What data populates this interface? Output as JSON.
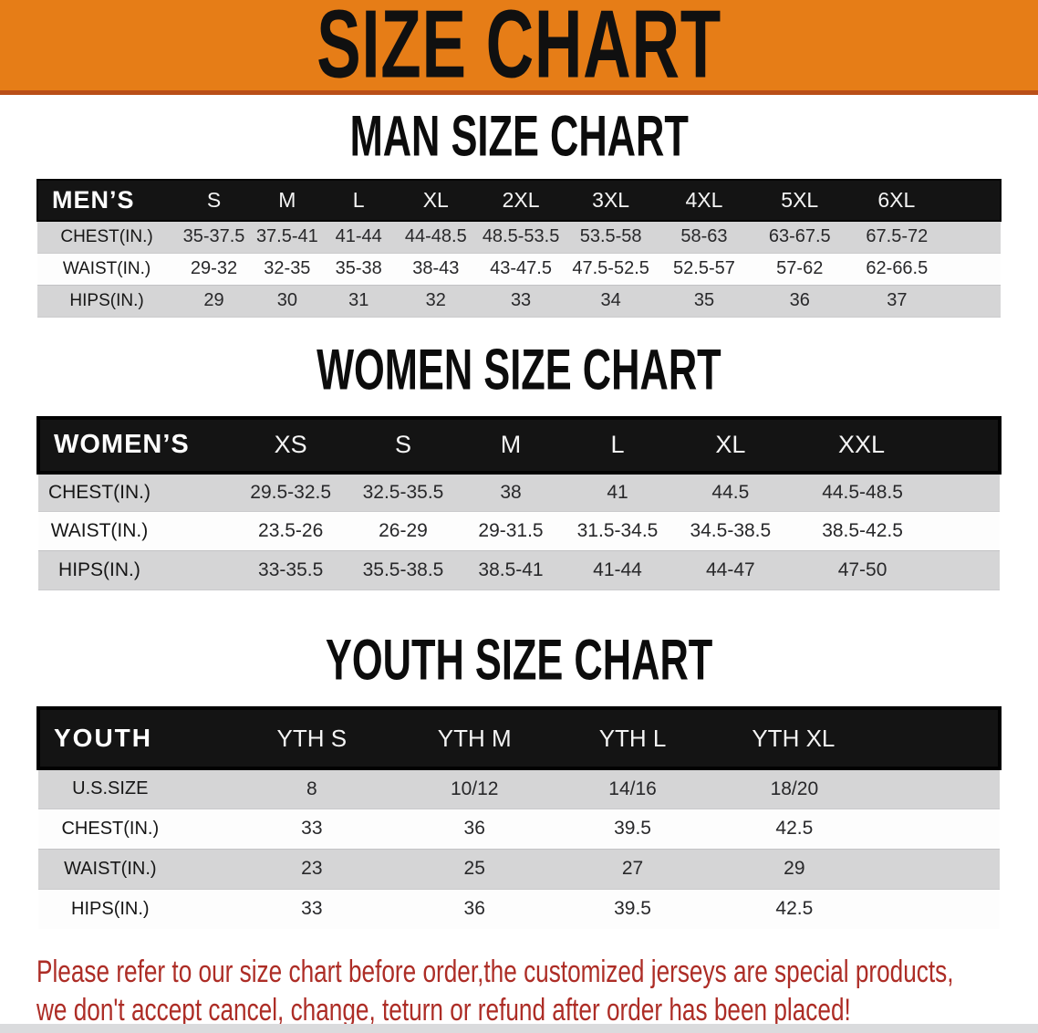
{
  "banner": {
    "title": "SIZE CHART",
    "bg_color": "#E67D17",
    "edge_color": "#BA4F18"
  },
  "sections": [
    {
      "id": "men",
      "title": "MAN SIZE CHART",
      "header_label": "MEN’S",
      "columns": [
        "S",
        "M",
        "L",
        "XL",
        "2XL",
        "3XL",
        "4XL",
        "5XL",
        "6XL"
      ],
      "rows": [
        {
          "label": "CHEST(IN.)",
          "values": [
            "35-37.5",
            "37.5-41",
            "41-44",
            "44-48.5",
            "48.5-53.5",
            "53.5-58",
            "58-63",
            "63-67.5",
            "67.5-72"
          ]
        },
        {
          "label": "WAIST(IN.)",
          "values": [
            "29-32",
            "32-35",
            "35-38",
            "38-43",
            "43-47.5",
            "47.5-52.5",
            "52.5-57",
            "57-62",
            "62-66.5"
          ]
        },
        {
          "label": "HIPS(IN.)",
          "values": [
            "29",
            "30",
            "31",
            "32",
            "33",
            "34",
            "35",
            "36",
            "37"
          ]
        }
      ]
    },
    {
      "id": "women",
      "title": "WOMEN SIZE CHART",
      "header_label": "WOMEN’S",
      "columns": [
        "XS",
        "S",
        "M",
        "L",
        "XL",
        "XXL"
      ],
      "rows": [
        {
          "label": "CHEST(IN.)",
          "values": [
            "29.5-32.5",
            "32.5-35.5",
            "38",
            "41",
            "44.5",
            "44.5-48.5"
          ]
        },
        {
          "label": "WAIST(IN.)",
          "values": [
            "23.5-26",
            "26-29",
            "29-31.5",
            "31.5-34.5",
            "34.5-38.5",
            "38.5-42.5"
          ]
        },
        {
          "label": "HIPS(IN.)",
          "values": [
            "33-35.5",
            "35.5-38.5",
            "38.5-41",
            "41-44",
            "44-47",
            "47-50"
          ]
        }
      ]
    },
    {
      "id": "youth",
      "title": "YOUTH SIZE CHART",
      "header_label": "YOUTH",
      "columns": [
        "YTH S",
        "YTH M",
        "YTH L",
        "YTH XL"
      ],
      "rows": [
        {
          "label": "U.S.SIZE",
          "values": [
            "8",
            "10/12",
            "14/16",
            "18/20"
          ]
        },
        {
          "label": "CHEST(IN.)",
          "values": [
            "33",
            "36",
            "39.5",
            "42.5"
          ]
        },
        {
          "label": "WAIST(IN.)",
          "values": [
            "23",
            "25",
            "27",
            "29"
          ]
        },
        {
          "label": "HIPS(IN.)",
          "values": [
            "33",
            "36",
            "39.5",
            "42.5"
          ]
        }
      ]
    }
  ],
  "disclaimer": {
    "line1": "Please refer to our size chart before order,the customized jerseys are special products,",
    "line2": "we don't accept cancel, change, teturn or refund after order has been placed!",
    "color": "#AD2D26"
  }
}
